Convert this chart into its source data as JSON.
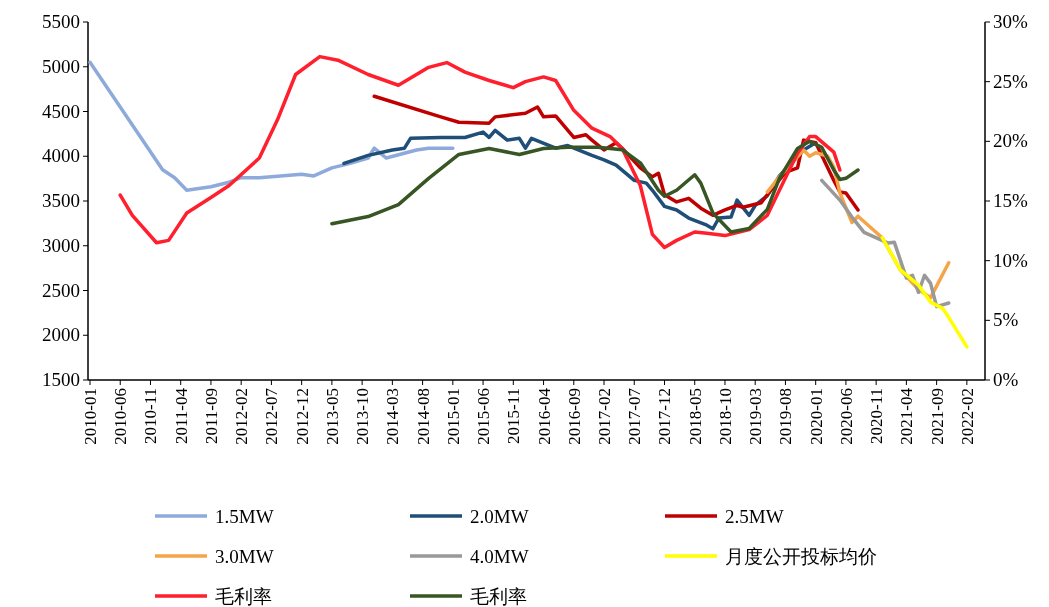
{
  "chart_data": {
    "type": "line",
    "xlim": [
      "2010-01",
      "2022-05"
    ],
    "xticks": [
      "2010-01",
      "2010-06",
      "2010-11",
      "2011-04",
      "2011-09",
      "2012-02",
      "2012-07",
      "2012-12",
      "2013-05",
      "2013-10",
      "2014-03",
      "2014-08",
      "2015-01",
      "2015-06",
      "2015-11",
      "2016-04",
      "2016-09",
      "2017-02",
      "2017-07",
      "2017-12",
      "2018-05",
      "2018-10",
      "2019-03",
      "2019-08",
      "2020-01",
      "2020-06",
      "2020-11",
      "2021-04",
      "2021-09",
      "2022-02"
    ],
    "ylim": [
      1500,
      5500
    ],
    "yticks": [
      1500,
      2000,
      2500,
      3000,
      3500,
      4000,
      4500,
      5000,
      5500
    ],
    "y2lim": [
      0,
      30
    ],
    "y2ticks": [
      {
        "value": 0,
        "label": "0%"
      },
      {
        "value": 5,
        "label": "5%"
      },
      {
        "value": 10,
        "label": "10%"
      },
      {
        "value": 15,
        "label": "15%"
      },
      {
        "value": 20,
        "label": "20%"
      },
      {
        "value": 25,
        "label": "25%"
      },
      {
        "value": 30,
        "label": "30%"
      }
    ],
    "grid": false,
    "legend": "bottom",
    "line_style": "solid",
    "marker": "none",
    "series": [
      {
        "name": "1.5MW",
        "color": "#8eaadb",
        "x": [
          "2010-01",
          "2011-01",
          "2011-03",
          "2011-05",
          "2011-09",
          "2011-12",
          "2012-02",
          "2012-05",
          "2012-12",
          "2013-02",
          "2013-05",
          "2013-08",
          "2013-11",
          "2013-12",
          "2014-02",
          "2014-07",
          "2014-09",
          "2015-01"
        ],
        "values": [
          5050,
          3850,
          3760,
          3620,
          3660,
          3710,
          3760,
          3760,
          3800,
          3780,
          3870,
          3920,
          3980,
          4090,
          3980,
          4070,
          4090,
          4090
        ]
      },
      {
        "name": "2.0MW",
        "color": "#1f4e79",
        "x": [
          "2013-07",
          "2013-11",
          "2014-03",
          "2014-05",
          "2014-06",
          "2014-11",
          "2015-03",
          "2015-06",
          "2015-07",
          "2015-08",
          "2015-10",
          "2015-12",
          "2016-01",
          "2016-02",
          "2016-06",
          "2016-08",
          "2016-12",
          "2017-02",
          "2017-04",
          "2017-07",
          "2017-09",
          "2017-10",
          "2017-12",
          "2018-02",
          "2018-04",
          "2018-07",
          "2018-08",
          "2018-09",
          "2018-11",
          "2018-12",
          "2019-02",
          "2019-03",
          "2019-05",
          "2019-07",
          "2019-11",
          "2020-01"
        ],
        "values": [
          3920,
          4010,
          4070,
          4090,
          4200,
          4210,
          4210,
          4270,
          4210,
          4290,
          4180,
          4200,
          4090,
          4200,
          4090,
          4120,
          4010,
          3960,
          3900,
          3730,
          3700,
          3620,
          3440,
          3400,
          3310,
          3230,
          3190,
          3310,
          3320,
          3510,
          3340,
          3450,
          3560,
          3780,
          4070,
          4150
        ]
      },
      {
        "name": "2.5MW",
        "color": "#c00000",
        "x": [
          "2013-12",
          "2014-11",
          "2015-02",
          "2015-07",
          "2015-08",
          "2016-01",
          "2016-03",
          "2016-04",
          "2016-06",
          "2016-09",
          "2016-11",
          "2016-12",
          "2017-02",
          "2017-04",
          "2017-05",
          "2017-08",
          "2017-10",
          "2017-11",
          "2017-12",
          "2018-02",
          "2018-04",
          "2018-06",
          "2018-08",
          "2018-10",
          "2018-12",
          "2019-01",
          "2019-04",
          "2019-05",
          "2019-08",
          "2019-10",
          "2019-11",
          "2020-01",
          "2020-04",
          "2020-05",
          "2020-06",
          "2020-08"
        ],
        "values": [
          4670,
          4440,
          4380,
          4370,
          4440,
          4480,
          4550,
          4440,
          4450,
          4210,
          4240,
          4180,
          4070,
          4150,
          4090,
          3870,
          3770,
          3810,
          3570,
          3490,
          3530,
          3420,
          3340,
          3400,
          3450,
          3430,
          3480,
          3570,
          3820,
          3870,
          4180,
          4150,
          3730,
          3600,
          3590,
          3400
        ]
      },
      {
        "name": "3.0MW",
        "color": "#f4a547",
        "x": [
          "2019-05",
          "2019-07",
          "2019-11",
          "2019-12",
          "2020-01",
          "2020-03",
          "2020-04",
          "2020-05",
          "2020-07",
          "2020-08",
          "2020-10",
          "2020-12",
          "2021-03",
          "2021-06",
          "2021-08",
          "2021-11"
        ],
        "values": [
          3600,
          3770,
          4070,
          4000,
          4040,
          4000,
          3880,
          3590,
          3260,
          3330,
          3210,
          3090,
          2730,
          2510,
          2420,
          2810
        ]
      },
      {
        "name": "4.0MW",
        "color": "#999999",
        "x": [
          "2020-02",
          "2020-05",
          "2020-07",
          "2020-09",
          "2021-01",
          "2021-02",
          "2021-04",
          "2021-05",
          "2021-06",
          "2021-07",
          "2021-08",
          "2021-09",
          "2021-11"
        ],
        "values": [
          3730,
          3510,
          3320,
          3150,
          3030,
          3040,
          2640,
          2670,
          2480,
          2670,
          2580,
          2320,
          2360
        ]
      },
      {
        "name": "月度公开投标均价",
        "color": "#ffff00",
        "x": [
          "2020-12",
          "2021-03",
          "2021-06",
          "2021-08",
          "2021-10",
          "2021-11",
          "2022-02"
        ],
        "values": [
          3090,
          2730,
          2560,
          2370,
          2300,
          2200,
          1870
        ]
      },
      {
        "name": "毛利率",
        "color": "#ff1f2d",
        "axis": "y2",
        "x": [
          "2010-06",
          "2010-08",
          "2010-12",
          "2011-02",
          "2011-05",
          "2011-09",
          "2011-12",
          "2012-05",
          "2012-08",
          "2012-11",
          "2013-03",
          "2013-06",
          "2013-11",
          "2014-04",
          "2014-09",
          "2014-12",
          "2015-03",
          "2015-07",
          "2015-11",
          "2016-01",
          "2016-04",
          "2016-06",
          "2016-09",
          "2016-12",
          "2017-03",
          "2017-05",
          "2017-08",
          "2017-10",
          "2017-12",
          "2018-02",
          "2018-05",
          "2018-07",
          "2018-10",
          "2019-02",
          "2019-05",
          "2019-07",
          "2019-10",
          "2019-12",
          "2020-01",
          "2020-04",
          "2020-05"
        ],
        "values": [
          15.5,
          13.8,
          11.5,
          11.7,
          14.0,
          15.3,
          16.3,
          18.6,
          21.8,
          25.6,
          27.1,
          26.8,
          25.6,
          24.7,
          26.2,
          26.6,
          25.8,
          25.1,
          24.5,
          25.0,
          25.4,
          25.1,
          22.6,
          21.1,
          20.4,
          19.4,
          16.3,
          12.2,
          11.1,
          11.7,
          12.4,
          12.3,
          12.1,
          12.6,
          13.8,
          15.9,
          19.0,
          20.4,
          20.4,
          19.1,
          17.6
        ]
      },
      {
        "name": "毛利率",
        "color": "#375623",
        "axis": "y2",
        "x": [
          "2013-05",
          "2013-11",
          "2014-04",
          "2014-09",
          "2015-02",
          "2015-07",
          "2015-12",
          "2016-04",
          "2016-08",
          "2017-01",
          "2017-05",
          "2017-08",
          "2017-11",
          "2017-12",
          "2018-02",
          "2018-05",
          "2018-06",
          "2018-08",
          "2018-11",
          "2019-02",
          "2019-05",
          "2019-07",
          "2019-10",
          "2019-12",
          "2020-02",
          "2020-04",
          "2020-05",
          "2020-06",
          "2020-08"
        ],
        "values": [
          13.1,
          13.7,
          14.7,
          16.9,
          18.9,
          19.4,
          18.9,
          19.4,
          19.5,
          19.5,
          19.3,
          18.2,
          15.9,
          15.4,
          15.9,
          17.2,
          16.5,
          14.0,
          12.4,
          12.7,
          14.3,
          16.9,
          19.4,
          20.0,
          19.5,
          17.6,
          16.8,
          16.9,
          17.6
        ]
      }
    ]
  }
}
